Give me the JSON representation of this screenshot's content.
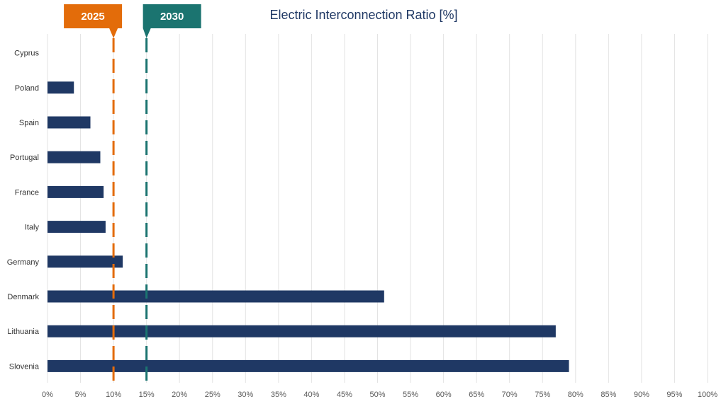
{
  "chart_data": {
    "type": "bar",
    "orientation": "horizontal",
    "title": "Electric Interconnection Ratio [%]",
    "categories": [
      "Cyprus",
      "Poland",
      "Spain",
      "Portugal",
      "France",
      "Italy",
      "Germany",
      "Denmark",
      "Lithuania",
      "Slovenia"
    ],
    "values": [
      0,
      4,
      6.5,
      8,
      8.5,
      8.8,
      11.4,
      51,
      77,
      79
    ],
    "xlim": [
      0,
      100
    ],
    "xticks": [
      0,
      5,
      10,
      15,
      20,
      25,
      30,
      35,
      40,
      45,
      50,
      55,
      60,
      65,
      70,
      75,
      80,
      85,
      90,
      95,
      100
    ],
    "tick_suffix": "%",
    "grid": true,
    "bar_color": "#1f3864",
    "targets": [
      {
        "label": "2025",
        "value": 10,
        "color": "#e36c0a"
      },
      {
        "label": "2030",
        "value": 15,
        "color": "#1b7470"
      }
    ]
  }
}
